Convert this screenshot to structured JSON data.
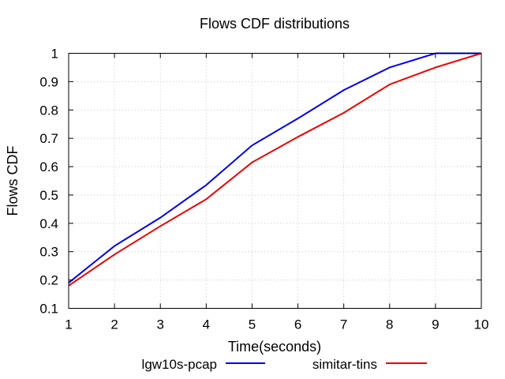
{
  "chart_data": {
    "type": "line",
    "title": "Flows CDF distributions",
    "xlabel": "Time(seconds)",
    "ylabel": "Flows CDF",
    "xlim": [
      1,
      10
    ],
    "ylim": [
      0.1,
      1
    ],
    "xticks": [
      "1",
      "2",
      "3",
      "4",
      "5",
      "6",
      "7",
      "8",
      "9",
      "10"
    ],
    "yticks": [
      "0.1",
      "0.2",
      "0.3",
      "0.4",
      "0.5",
      "0.6",
      "0.7",
      "0.8",
      "0.9",
      "1"
    ],
    "grid": true,
    "legend_position": "bottom",
    "x": [
      1,
      2,
      3,
      4,
      5,
      6,
      7,
      8,
      9,
      10
    ],
    "series": [
      {
        "name": "lgw10s-pcap",
        "color": "#0000ee",
        "values": [
          0.19,
          0.32,
          0.42,
          0.535,
          0.675,
          0.77,
          0.87,
          0.95,
          1.0,
          1.0
        ]
      },
      {
        "name": "simitar-tins",
        "color": "#ee0000",
        "values": [
          0.18,
          0.29,
          0.39,
          0.485,
          0.615,
          0.705,
          0.79,
          0.89,
          0.95,
          1.0
        ]
      }
    ]
  }
}
